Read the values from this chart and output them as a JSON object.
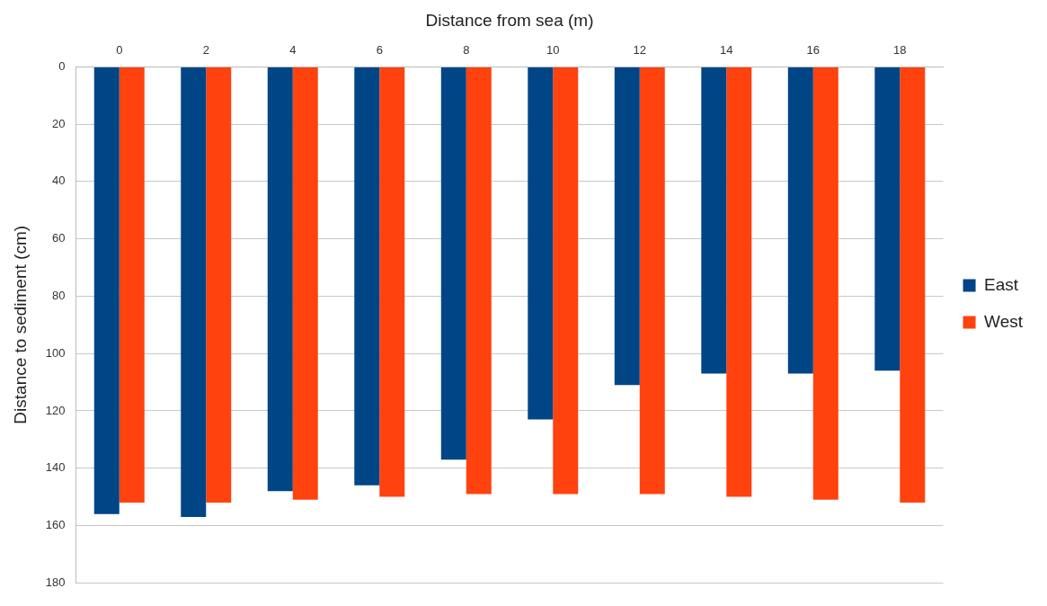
{
  "chart_data": {
    "type": "bar",
    "xlabel": "Distance from sea (m)",
    "ylabel": "Distance to sediment (cm)",
    "categories": [
      "0",
      "2",
      "4",
      "6",
      "8",
      "10",
      "12",
      "14",
      "16",
      "18"
    ],
    "series": [
      {
        "name": "East",
        "color": "#004586",
        "values": [
          156,
          157,
          148,
          146,
          137,
          123,
          111,
          107,
          107,
          106
        ]
      },
      {
        "name": "West",
        "color": "#ff420e",
        "values": [
          152,
          152,
          151,
          150,
          149,
          149,
          149,
          150,
          151,
          152
        ]
      }
    ],
    "ylim": [
      180,
      0
    ],
    "yticks": [
      0,
      20,
      40,
      60,
      80,
      100,
      120,
      140,
      160,
      180
    ],
    "grid": "y",
    "legend": "right"
  }
}
